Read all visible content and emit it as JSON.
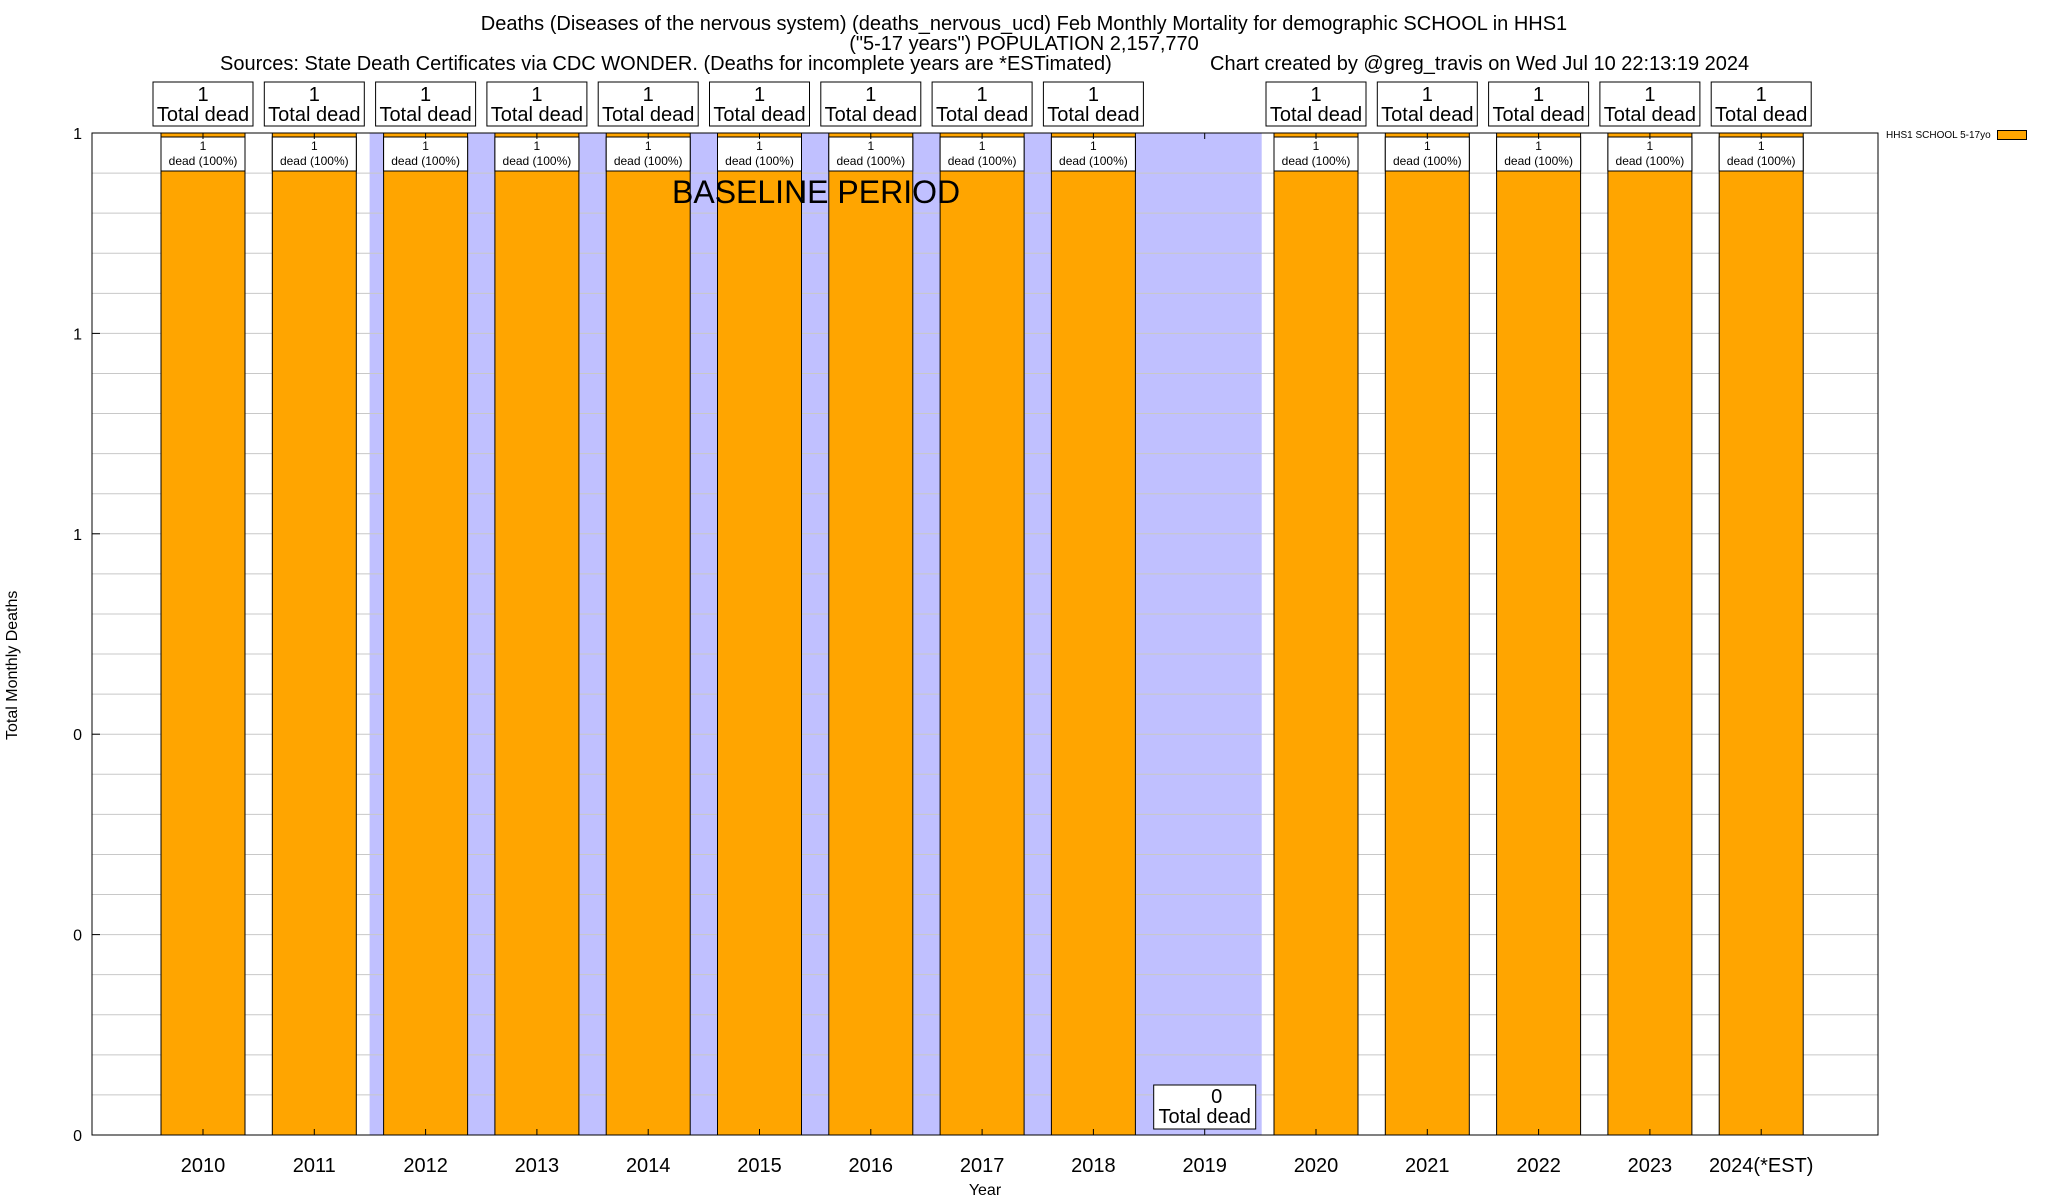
{
  "title": {
    "line1": "Deaths (Diseases of the nervous system) (deaths_nervous_ucd) Feb Monthly Mortality for demographic SCHOOL in HHS1",
    "line2": "(\"5-17 years\") POPULATION 2,157,770",
    "line3": "Sources: State Death Certificates via CDC WONDER. (Deaths for incomplete years are *ESTimated)",
    "line4": "Chart created by @greg_travis on Wed Jul 10 22:13:19 2024"
  },
  "annotation": {
    "baseline": "BASELINE PERIOD"
  },
  "legend": {
    "label": "HHS1 SCHOOL 5-17yo"
  },
  "colors": {
    "bar": "#FFA500",
    "baseline_band": "#C0C0FF",
    "grid": "#c8c8c8"
  },
  "chart_data": {
    "type": "bar",
    "title": "Deaths (Diseases of the nervous system) (deaths_nervous_ucd) Feb Monthly Mortality for demographic SCHOOL in HHS1",
    "xlabel": "Year",
    "ylabel": "Total Monthly Deaths",
    "ylim": [
      0,
      1
    ],
    "y_tick_labels": [
      "0",
      "0",
      "0",
      "1",
      "1",
      "1"
    ],
    "categories": [
      "2010",
      "2011",
      "2012",
      "2013",
      "2014",
      "2015",
      "2016",
      "2017",
      "2018",
      "2019",
      "2020",
      "2021",
      "2022",
      "2023",
      "2024(*EST)"
    ],
    "series": [
      {
        "name": "HHS1 SCHOOL 5-17yo",
        "values": [
          1,
          1,
          1,
          1,
          1,
          1,
          1,
          1,
          1,
          0,
          1,
          1,
          1,
          1,
          1
        ]
      }
    ],
    "top_labels": {
      "counts": [
        "1",
        "1",
        "1",
        "1",
        "1",
        "1",
        "1",
        "1",
        "1",
        "0",
        "1",
        "1",
        "1",
        "1",
        "1"
      ],
      "caption": "Total dead"
    },
    "bar_labels": {
      "counts": [
        "1",
        "1",
        "1",
        "1",
        "1",
        "1",
        "1",
        "1",
        "1",
        "",
        "1",
        "1",
        "1",
        "1",
        "1"
      ],
      "caption": "dead (100%)"
    },
    "baseline_period": {
      "from": "2012",
      "to": "2019"
    }
  }
}
